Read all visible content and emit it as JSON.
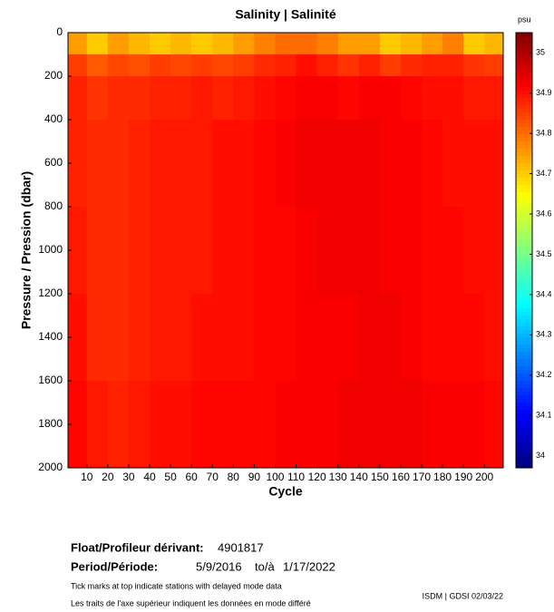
{
  "chart_data": {
    "type": "heatmap",
    "title": "Salinity | Salinité",
    "colorbar_label": "psu",
    "x_label": "Cycle",
    "y_label": "Pressure / Pression (dbar)",
    "colormap": "jet",
    "xbins": [
      1,
      10,
      20,
      30,
      40,
      50,
      60,
      70,
      80,
      90,
      100,
      110,
      120,
      130,
      140,
      150,
      160,
      170,
      180,
      190,
      200,
      209
    ],
    "ybins": [
      0,
      100,
      200,
      400,
      800,
      1200,
      1600,
      2000
    ],
    "values": [
      [
        34.75,
        34.7,
        34.75,
        34.72,
        34.7,
        34.72,
        34.7,
        34.72,
        34.75,
        34.78,
        34.8,
        34.8,
        34.78,
        34.75,
        34.75,
        34.7,
        34.72,
        34.75,
        34.78,
        34.7,
        34.72
      ],
      [
        34.85,
        34.82,
        34.84,
        34.83,
        34.85,
        34.84,
        34.85,
        34.84,
        34.85,
        34.87,
        34.88,
        34.9,
        34.88,
        34.86,
        34.88,
        34.85,
        34.87,
        34.88,
        34.88,
        34.86,
        34.85
      ],
      [
        34.88,
        34.86,
        34.87,
        34.87,
        34.88,
        34.88,
        34.89,
        34.88,
        34.89,
        34.9,
        34.91,
        34.92,
        34.92,
        34.91,
        34.92,
        34.92,
        34.91,
        34.9,
        34.9,
        34.89,
        34.89
      ],
      [
        34.88,
        34.87,
        34.87,
        34.88,
        34.89,
        34.89,
        34.89,
        34.9,
        34.9,
        34.91,
        34.92,
        34.93,
        34.93,
        34.93,
        34.93,
        34.92,
        34.92,
        34.91,
        34.9,
        34.9,
        34.9
      ],
      [
        34.89,
        34.87,
        34.87,
        34.88,
        34.89,
        34.89,
        34.89,
        34.9,
        34.9,
        34.91,
        34.91,
        34.92,
        34.93,
        34.93,
        34.93,
        34.92,
        34.92,
        34.91,
        34.91,
        34.9,
        34.9
      ],
      [
        34.9,
        34.87,
        34.87,
        34.88,
        34.89,
        34.89,
        34.9,
        34.9,
        34.9,
        34.91,
        34.91,
        34.92,
        34.92,
        34.92,
        34.93,
        34.93,
        34.92,
        34.91,
        34.91,
        34.91,
        34.9
      ],
      [
        34.91,
        34.89,
        34.88,
        34.89,
        34.9,
        34.9,
        34.91,
        34.91,
        34.91,
        34.91,
        34.92,
        34.92,
        34.92,
        34.93,
        34.93,
        34.93,
        34.93,
        34.92,
        34.92,
        34.92,
        34.91
      ]
    ],
    "xlim": [
      1,
      209
    ],
    "xticks": [
      10,
      20,
      30,
      40,
      50,
      60,
      70,
      80,
      90,
      100,
      110,
      120,
      130,
      140,
      150,
      160,
      170,
      180,
      190,
      200
    ],
    "ylim": [
      0,
      2000
    ],
    "y_inverted": true,
    "yticks": [
      0,
      200,
      400,
      600,
      800,
      1000,
      1200,
      1400,
      1600,
      1800,
      2000
    ],
    "clim": [
      33.97,
      35.05
    ],
    "cticks": [
      34,
      34.1,
      34.2,
      34.3,
      34.4,
      34.5,
      34.6,
      34.7,
      34.8,
      34.9,
      35
    ]
  },
  "footer": {
    "float_label": "Float/Profileur dérivant:",
    "float_id": "4901817",
    "period_label": "Period/Période:",
    "start": "5/9/2016",
    "to": "to/à",
    "end": "1/17/2022",
    "note_en": "Tick marks at top indicate stations with delayed mode data",
    "note_fr": "Les traits de l'axe supérieur indiquent les données en mode différé",
    "credit": "ISDM | GDSI 02/03/22"
  }
}
